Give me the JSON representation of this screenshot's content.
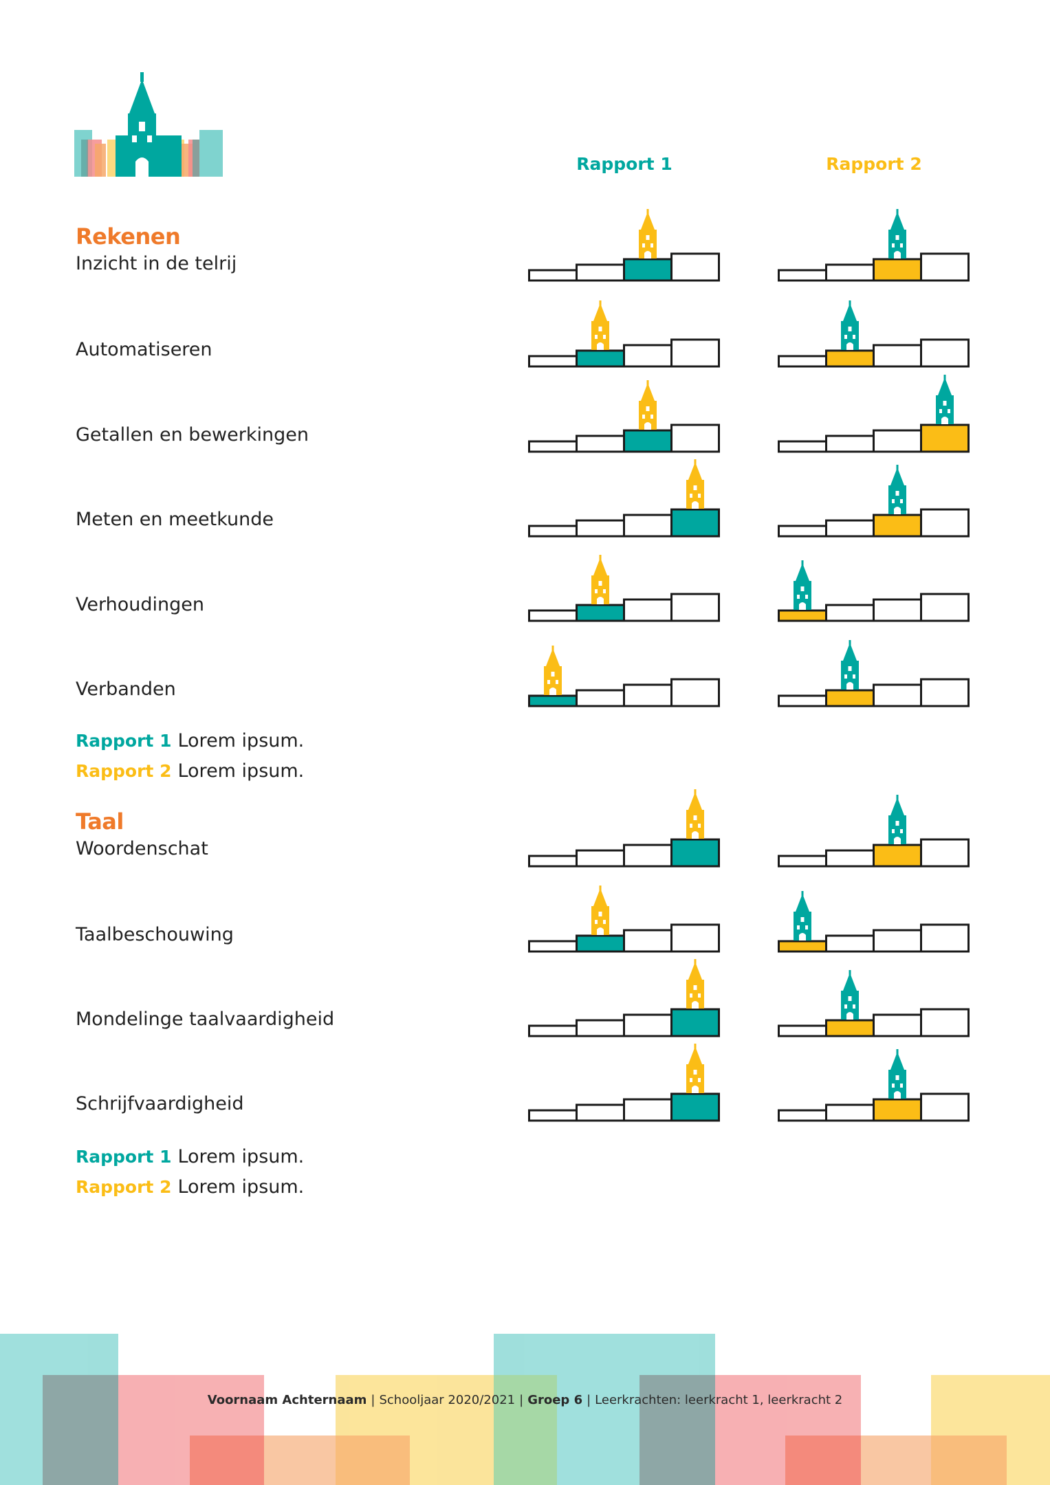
{
  "header": {
    "rapport1_label": "Rapport 1",
    "rapport2_label": "Rapport 2"
  },
  "colors": {
    "teal": "#00a79f",
    "yellow": "#fbbd16",
    "orange": "#ef7a2a"
  },
  "sections": [
    {
      "title": "Rekenen",
      "rows": [
        {
          "label": "Inzicht in de telrij",
          "rapport1_level": 3,
          "rapport2_level": 3
        },
        {
          "label": "Automatiseren",
          "rapport1_level": 2,
          "rapport2_level": 2
        },
        {
          "label": "Getallen en bewerkingen",
          "rapport1_level": 3,
          "rapport2_level": 4
        },
        {
          "label": "Meten en meetkunde",
          "rapport1_level": 4,
          "rapport2_level": 3
        },
        {
          "label": "Verhoudingen",
          "rapport1_level": 2,
          "rapport2_level": 1
        },
        {
          "label": "Verbanden",
          "rapport1_level": 1,
          "rapport2_level": 2
        }
      ],
      "notes": [
        {
          "tag": "Rapport 1",
          "text": "Lorem ipsum."
        },
        {
          "tag": "Rapport 2",
          "text": "Lorem ipsum."
        }
      ]
    },
    {
      "title": "Taal",
      "rows": [
        {
          "label": "Woordenschat",
          "rapport1_level": 4,
          "rapport2_level": 3
        },
        {
          "label": "Taalbeschouwing",
          "rapport1_level": 2,
          "rapport2_level": 1
        },
        {
          "label": "Mondelinge taalvaardigheid",
          "rapport1_level": 4,
          "rapport2_level": 2
        },
        {
          "label": "Schrijfvaardigheid",
          "rapport1_level": 4,
          "rapport2_level": 3
        }
      ],
      "notes": [
        {
          "tag": "Rapport 1",
          "text": "Lorem ipsum."
        },
        {
          "tag": "Rapport 2",
          "text": "Lorem ipsum."
        }
      ]
    }
  ],
  "footer": {
    "name": "Voornaam Achternaam",
    "schooljaar": "Schooljaar 2020/2021",
    "groep": "Groep 6",
    "leerkrachten": "Leerkrachten: leerkracht 1, leerkracht 2"
  }
}
